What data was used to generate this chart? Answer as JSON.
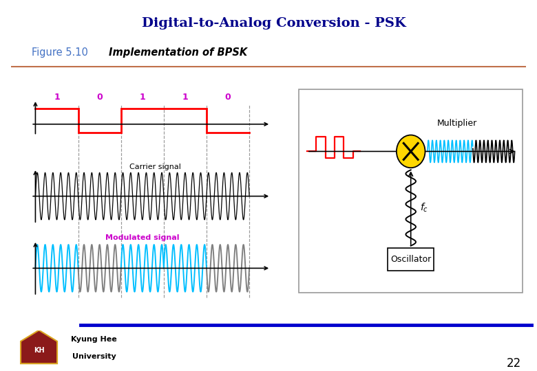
{
  "title": "Digital-to-Analog Conversion - PSK",
  "title_bg": "#f5c0d0",
  "title_color": "#00008B",
  "fig_bg": "#ffffff",
  "figure_label": "Figure 5.10",
  "figure_label_color": "#4472C4",
  "figure_subtitle": "Implementation of BPSK",
  "separator_color": "#C0704A",
  "bits": [
    "1",
    "0",
    "1",
    "1",
    "0"
  ],
  "bit_color": "#CC00CC",
  "digital_signal_color": "#FF0000",
  "carrier_color": "#000000",
  "modulated_cyan_color": "#00BFFF",
  "modulated_gray_color": "#808080",
  "carrier_label": "Carrier signal",
  "modulated_label": "Modulated signal",
  "modulated_label_color": "#CC00CC",
  "footer_line_color": "#0000CD",
  "page_number": "22",
  "kyunghee_text": "Kyung Hee\nUniversity"
}
